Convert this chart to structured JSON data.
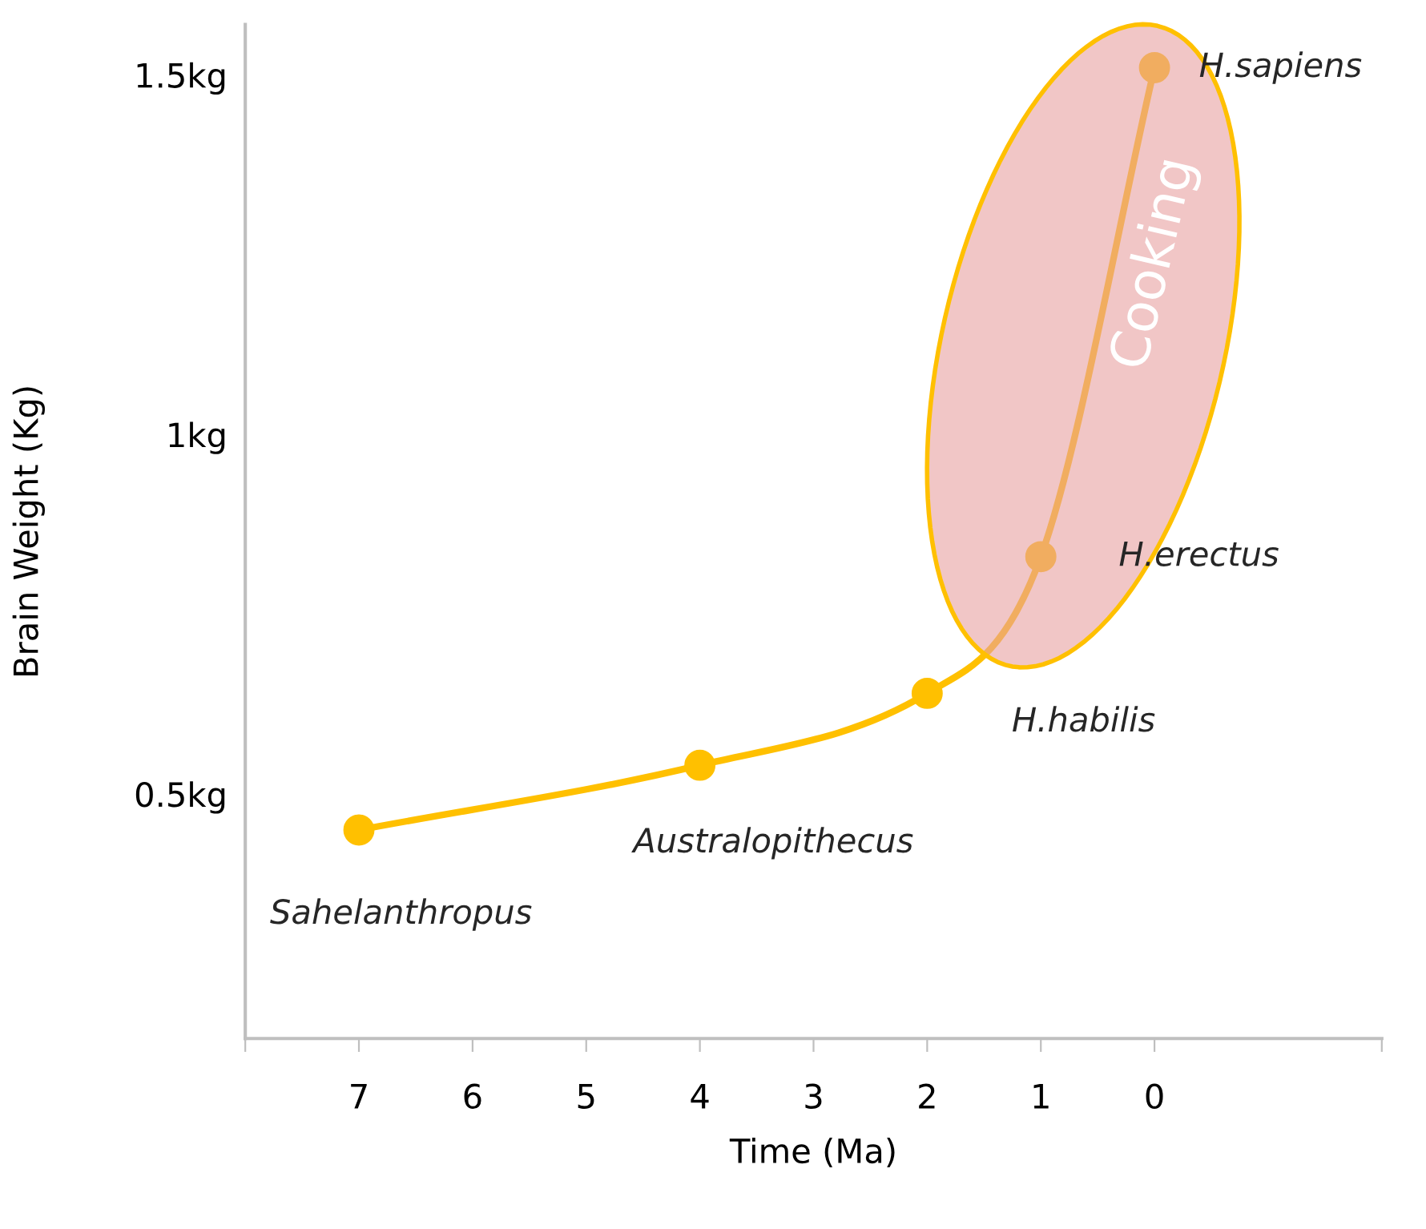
{
  "chart_data": {
    "type": "line",
    "xlabel": "Time (Ma)",
    "ylabel": "Brain Weight (Kg)",
    "x": [
      7,
      4,
      2,
      1,
      0
    ],
    "series": [
      {
        "color": "#ffc000",
        "values": [
          0.45,
          0.54,
          0.64,
          0.83,
          1.51
        ]
      }
    ],
    "marker": "circle",
    "line_style": "solid",
    "grid": false,
    "xlim": [
      8,
      -2
    ],
    "xticks": [
      {
        "value": 8,
        "label": null
      },
      7,
      6,
      5,
      4,
      3,
      2,
      1,
      0,
      {
        "value": -2,
        "label": null
      }
    ],
    "ylim": [
      0.16,
      1.57
    ],
    "yticks": [
      {
        "value": 0.5,
        "label": "0.5kg"
      },
      {
        "value": 1,
        "label": "1kg"
      },
      {
        "value": 1.5,
        "label": "1.5kg"
      }
    ],
    "annotations": [
      {
        "text": "Sahelanthropus",
        "x": 7,
        "y": 0.45
      },
      {
        "text": "Australopithecus",
        "x": 4,
        "y": 0.54
      },
      {
        "text": "H.habilis",
        "x": 2,
        "y": 0.64
      },
      {
        "text": "H.erectus",
        "x": 1,
        "y": 0.83
      },
      {
        "text": "H.sapiens",
        "x": 0,
        "y": 1.51
      },
      "Cooking"
    ]
  }
}
